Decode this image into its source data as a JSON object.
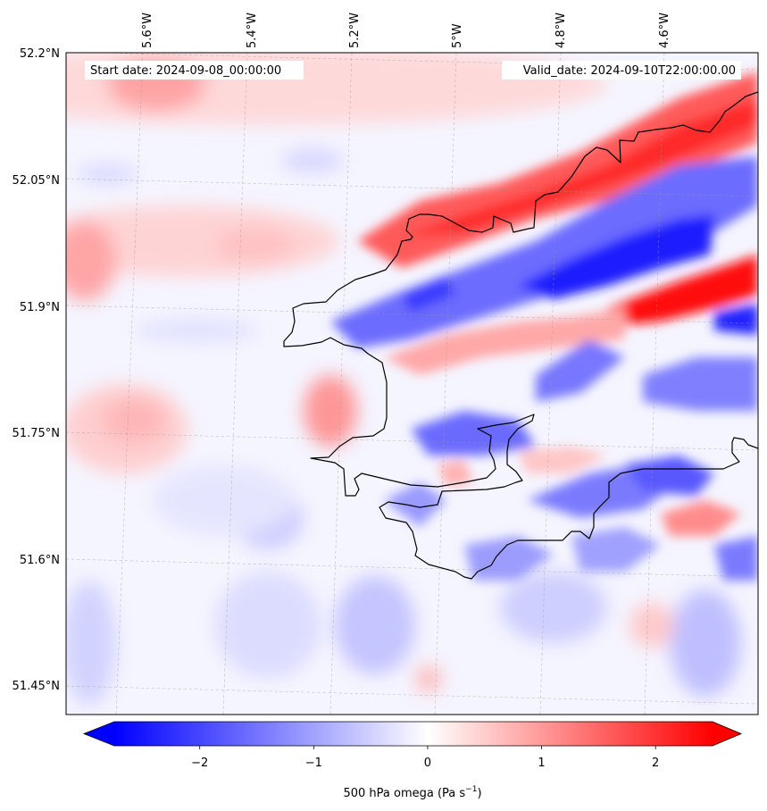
{
  "map": {
    "start_label": "Start date: 2024-09-08_00:00:00",
    "valid_label": "Valid_date: 2024-09-10T22:00:00.00",
    "lon_labels": [
      "5.6°W",
      "5.4°W",
      "5.2°W",
      "5°W",
      "4.8°W",
      "4.6°W"
    ],
    "lat_labels": [
      "52.2°N",
      "52.05°N",
      "51.9°N",
      "51.75°N",
      "51.6°N",
      "51.45°N"
    ],
    "coastline_color": "#000000",
    "gridline_style": "dashed grey"
  },
  "colorbar": {
    "label": "500 hPa omega (Pa s",
    "label_sup": "−1",
    "label_tail": ")",
    "ticks": [
      "−2",
      "−1",
      "0",
      "1",
      "2"
    ],
    "tick_values": [
      -2,
      -1,
      0,
      1,
      2
    ],
    "range": [
      -2.75,
      2.5
    ],
    "extend": "both",
    "colormap": "bwr",
    "low_color": "#0000ff",
    "mid_color": "#ffffff",
    "high_color": "#ff0000"
  }
}
